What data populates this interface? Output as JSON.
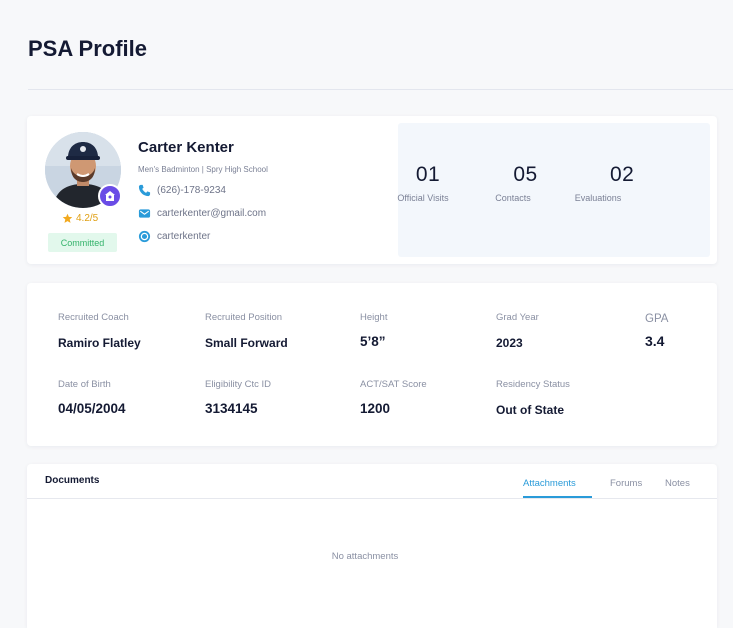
{
  "page": {
    "title": "PSA Profile"
  },
  "profile": {
    "name": "Carter Kenter",
    "subtitle": "Men's Badminton | Spry High School",
    "phone": "(626)-178-9234",
    "email": "carterkenter@gmail.com",
    "social": "carterkenter",
    "rating": "4.2/5",
    "status": "Committed",
    "stats": [
      {
        "value": "01",
        "label": "Official Visits"
      },
      {
        "value": "05",
        "label": "Contacts"
      },
      {
        "value": "02",
        "label": "Evaluations"
      }
    ]
  },
  "details": {
    "recruited_coach": {
      "label": "Recruited Coach",
      "value": "Ramiro Flatley"
    },
    "recruited_position": {
      "label": "Recruited Position",
      "value": "Small Forward"
    },
    "height": {
      "label": "Height",
      "value": "5’8”"
    },
    "grad_year": {
      "label": "Grad Year",
      "value": "2023"
    },
    "gpa": {
      "label": "GPA",
      "value": "3.4"
    },
    "dob": {
      "label": "Date of Birth",
      "value": "04/05/2004"
    },
    "eligibility_id": {
      "label": "Eligibility Ctc ID",
      "value": "3134145"
    },
    "act_sat": {
      "label": "ACT/SAT Score",
      "value": "1200"
    },
    "residency": {
      "label": "Residency Status",
      "value": "Out of State"
    }
  },
  "documents": {
    "title": "Documents",
    "tabs": [
      "Attachments",
      "Forums",
      "Notes"
    ],
    "active_tab": "Attachments",
    "empty_text": "No attachments"
  },
  "colors": {
    "accent": "#2a9bd9",
    "badge_purple": "#6a4ce6",
    "committed_bg": "#e2f8ec",
    "committed_text": "#34b36b",
    "star": "#f2a91e"
  },
  "icons": {
    "school_badge": "school-icon",
    "rating": "star-icon",
    "phone": "phone-icon",
    "email": "mail-icon",
    "social": "instagram-icon"
  }
}
